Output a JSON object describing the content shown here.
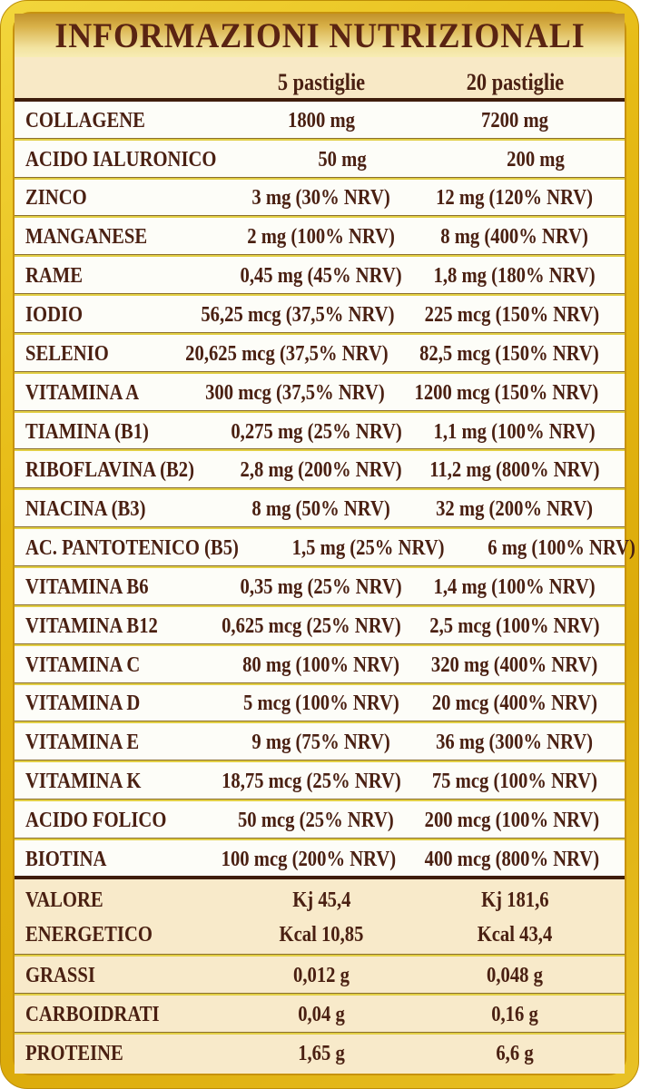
{
  "title": "INFORMAZIONI NUTRIZIONALI",
  "columns": {
    "per5": "5 pastiglie",
    "per20": "20 pastiglie"
  },
  "nutrients": [
    {
      "label": "COLLAGENE",
      "per5": "1800 mg",
      "per20": "7200 mg"
    },
    {
      "label": "ACIDO IALURONICO",
      "per5": "50 mg",
      "per20": "200 mg"
    },
    {
      "label": "ZINCO",
      "per5": "3 mg (30% NRV)",
      "per20": "12 mg (120% NRV)"
    },
    {
      "label": "MANGANESE",
      "per5": "2 mg (100% NRV)",
      "per20": "8 mg (400% NRV)"
    },
    {
      "label": "RAME",
      "per5": "0,45 mg (45% NRV)",
      "per20": "1,8 mg (180% NRV)"
    },
    {
      "label": "IODIO",
      "per5": "56,25 mcg (37,5% NRV)",
      "per20": "225 mcg (150% NRV)"
    },
    {
      "label": "SELENIO",
      "per5": "20,625 mcg (37,5% NRV)",
      "per20": "82,5 mcg (150% NRV)"
    },
    {
      "label": "VITAMINA A",
      "per5": "300 mcg (37,5% NRV)",
      "per20": "1200 mcg (150% NRV)"
    },
    {
      "label": "TIAMINA (B1)",
      "per5": "0,275 mg (25% NRV)",
      "per20": "1,1 mg (100% NRV)"
    },
    {
      "label": "RIBOFLAVINA (B2)",
      "per5": "2,8 mg (200% NRV)",
      "per20": "11,2 mg (800% NRV)"
    },
    {
      "label": "NIACINA (B3)",
      "per5": "8 mg (50% NRV)",
      "per20": "32 mg (200% NRV)"
    },
    {
      "label": "AC. PANTOTENICO (B5)",
      "per5": "1,5 mg (25% NRV)",
      "per20": "6 mg (100% NRV)"
    },
    {
      "label": "VITAMINA B6",
      "per5": "0,35 mg (25% NRV)",
      "per20": "1,4 mg (100% NRV)"
    },
    {
      "label": "VITAMINA B12",
      "per5": "0,625 mcg (25% NRV)",
      "per20": "2,5 mcg (100% NRV)"
    },
    {
      "label": "VITAMINA C",
      "per5": "80 mg (100% NRV)",
      "per20": "320 mg (400% NRV)"
    },
    {
      "label": "VITAMINA D",
      "per5": "5 mcg (100% NRV)",
      "per20": "20 mcg (400% NRV)"
    },
    {
      "label": "VITAMINA E",
      "per5": "9 mg (75% NRV)",
      "per20": "36 mg (300% NRV)"
    },
    {
      "label": "VITAMINA K",
      "per5": "18,75 mcg (25% NRV)",
      "per20": "75 mcg (100% NRV)"
    },
    {
      "label": "ACIDO FOLICO",
      "per5": "50 mcg (25% NRV)",
      "per20": "200 mcg (100% NRV)"
    },
    {
      "label": "BIOTINA",
      "per5": "100 mcg (200% NRV)",
      "per20": "400 mcg (800% NRV)"
    }
  ],
  "energy": {
    "label_line1": "VALORE",
    "label_line2": "ENERGETICO",
    "kj_per5": "Kj 45,4",
    "kj_per20": "Kj 181,6",
    "kcal_per5": "Kcal 10,85",
    "kcal_per20": "Kcal 43,4"
  },
  "macros": [
    {
      "label": "GRASSI",
      "per5": "0,012 g",
      "per20": "0,048 g"
    },
    {
      "label": "CARBOIDRATI",
      "per5": "0,04 g",
      "per20": "0,16 g"
    },
    {
      "label": "PROTEINE",
      "per5": "1,65 g",
      "per20": "6,6 g"
    }
  ],
  "colors": {
    "frame_gold": "#e0ae10",
    "title_text": "#5a2412",
    "body_text": "#4a2012",
    "cream_section": "#f8eaca",
    "row_white": "#fdfdf8",
    "separator_yellow": "#e2cf45",
    "dark_line": "#3f1d0c"
  }
}
